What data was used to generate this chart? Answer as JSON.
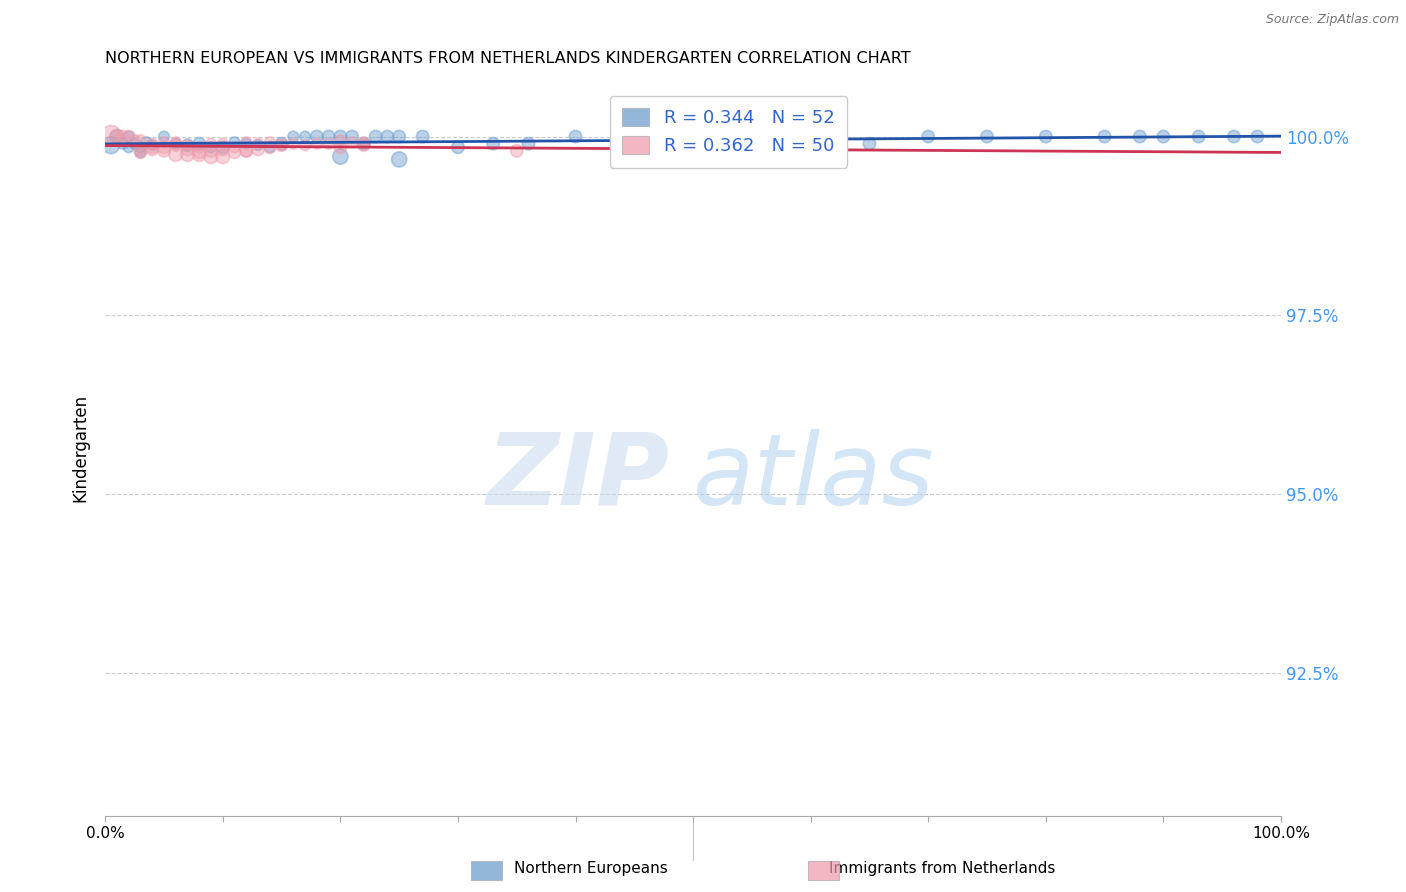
{
  "title": "NORTHERN EUROPEAN VS IMMIGRANTS FROM NETHERLANDS KINDERGARTEN CORRELATION CHART",
  "source": "Source: ZipAtlas.com",
  "ylabel": "Kindergarten",
  "xlim": [
    0.0,
    1.0
  ],
  "ylim": [
    0.905,
    1.008
  ],
  "yticks": [
    0.925,
    0.95,
    0.975,
    1.0
  ],
  "ytick_labels": [
    "92.5%",
    "95.0%",
    "97.5%",
    "100.0%"
  ],
  "legend_label_blue": "Northern Europeans",
  "legend_label_pink": "Immigrants from Netherlands",
  "R_blue": 0.344,
  "N_blue": 52,
  "R_pink": 0.362,
  "N_pink": 50,
  "blue_color": "#6699cc",
  "pink_color": "#ee99aa",
  "trendline_blue": "#2255aa",
  "trendline_pink": "#cc3355",
  "blue_scatter_x": [
    0.005,
    0.01,
    0.015,
    0.02,
    0.025,
    0.03,
    0.035,
    0.04,
    0.05,
    0.06,
    0.07,
    0.08,
    0.09,
    0.1,
    0.11,
    0.12,
    0.13,
    0.14,
    0.15,
    0.16,
    0.17,
    0.18,
    0.19,
    0.2,
    0.21,
    0.22,
    0.23,
    0.24,
    0.25,
    0.27,
    0.3,
    0.33,
    0.36,
    0.4,
    0.44,
    0.5,
    0.55,
    0.6,
    0.65,
    0.7,
    0.75,
    0.8,
    0.85,
    0.88,
    0.9,
    0.93,
    0.96,
    0.98,
    0.02,
    0.03,
    0.2,
    0.25
  ],
  "blue_scatter_y": [
    0.9988,
    1.0,
    0.999,
    1.0,
    0.999,
    0.9985,
    0.9992,
    0.9988,
    1.0,
    0.999,
    0.9988,
    0.999,
    0.9985,
    0.9985,
    0.9992,
    0.999,
    0.9988,
    0.9985,
    0.999,
    1.0,
    1.0,
    1.0,
    1.0,
    1.0,
    1.0,
    0.999,
    1.0,
    1.0,
    1.0,
    1.0,
    0.9985,
    0.999,
    0.999,
    1.0,
    1.0,
    0.9975,
    1.0,
    1.0,
    0.999,
    1.0,
    1.0,
    1.0,
    1.0,
    1.0,
    1.0,
    1.0,
    1.0,
    1.0,
    0.9985,
    0.9978,
    0.9972,
    0.9968
  ],
  "blue_scatter_sizes": [
    150,
    100,
    60,
    60,
    60,
    60,
    60,
    60,
    60,
    60,
    80,
    80,
    60,
    80,
    60,
    60,
    60,
    60,
    80,
    60,
    60,
    80,
    80,
    80,
    80,
    80,
    80,
    80,
    80,
    80,
    80,
    80,
    80,
    80,
    80,
    80,
    80,
    80,
    80,
    80,
    80,
    80,
    80,
    80,
    80,
    80,
    80,
    80,
    60,
    60,
    120,
    120
  ],
  "pink_scatter_x": [
    0.005,
    0.01,
    0.015,
    0.02,
    0.025,
    0.03,
    0.04,
    0.05,
    0.06,
    0.07,
    0.08,
    0.09,
    0.1,
    0.11,
    0.12,
    0.13,
    0.14,
    0.15,
    0.16,
    0.17,
    0.18,
    0.19,
    0.2,
    0.21,
    0.22,
    0.03,
    0.04,
    0.05,
    0.06,
    0.07,
    0.08,
    0.09,
    0.1,
    0.11,
    0.12,
    0.14,
    0.15,
    0.2,
    0.22,
    0.35,
    0.06,
    0.07,
    0.08,
    0.09,
    0.1,
    0.12,
    0.13,
    0.03,
    0.04,
    0.05
  ],
  "pink_scatter_y": [
    1.0002,
    1.0,
    1.0,
    1.0,
    0.9995,
    0.9995,
    0.999,
    0.9992,
    0.9992,
    0.9988,
    0.9985,
    0.999,
    0.999,
    0.9985,
    0.9992,
    0.999,
    0.9992,
    0.9988,
    0.999,
    0.9988,
    0.999,
    0.999,
    0.9995,
    0.9992,
    0.9992,
    0.9982,
    0.9985,
    0.9985,
    0.9988,
    0.9982,
    0.9978,
    0.998,
    0.9982,
    0.9978,
    0.998,
    0.9985,
    0.9988,
    0.9985,
    0.9988,
    0.998,
    0.9975,
    0.9975,
    0.9975,
    0.9972,
    0.9972,
    0.998,
    0.9982,
    0.9978,
    0.9982,
    0.998
  ],
  "pink_scatter_sizes": [
    200,
    100,
    80,
    80,
    60,
    60,
    60,
    60,
    60,
    60,
    60,
    60,
    60,
    60,
    60,
    60,
    60,
    60,
    60,
    60,
    60,
    60,
    60,
    60,
    60,
    80,
    80,
    80,
    80,
    80,
    80,
    80,
    80,
    80,
    80,
    80,
    80,
    80,
    80,
    80,
    100,
    100,
    100,
    100,
    100,
    80,
    80,
    80,
    80,
    80
  ]
}
